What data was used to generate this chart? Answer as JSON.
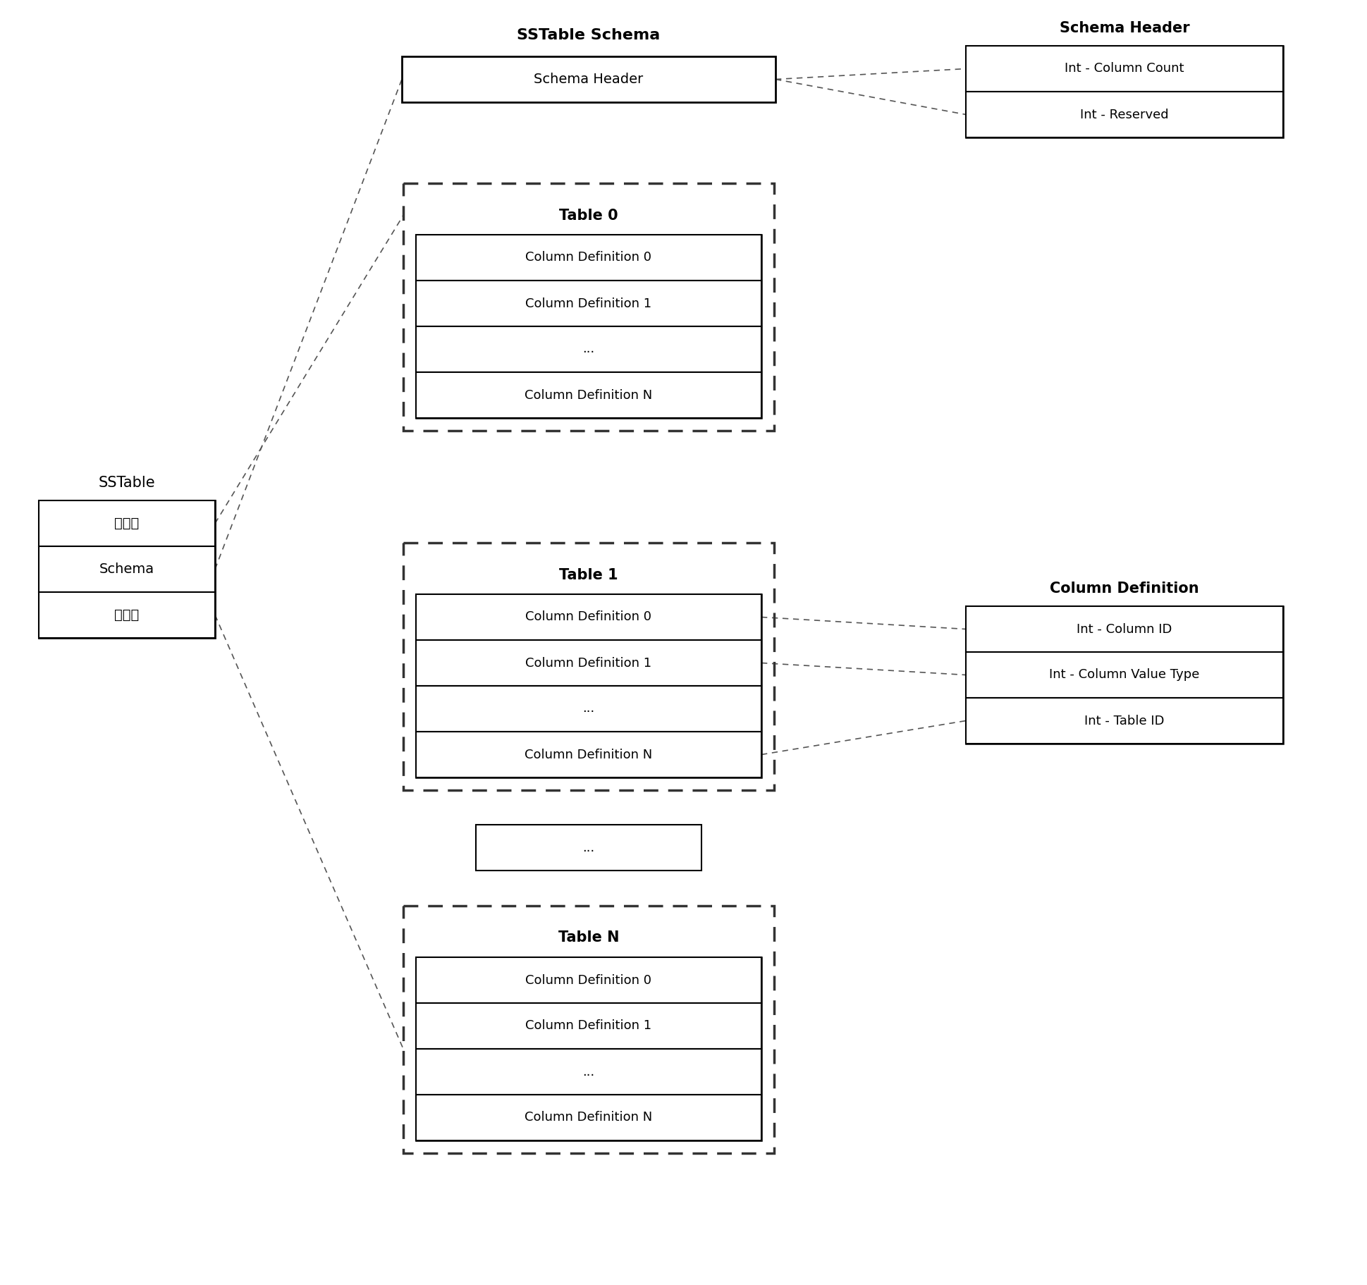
{
  "bg_color": "#ffffff",
  "text_color": "#000000",
  "box_edge_color": "#000000",
  "dashed_box_color": "#444444",
  "sstable_label": "SSTable",
  "sstable_rows": [
    "行数据",
    "Schema",
    "元数据"
  ],
  "schema_label": "SSTable Schema",
  "schema_header_row": "Schema Header",
  "schema_header_box_label": "Schema Header",
  "schema_header_items": [
    "Int - Column Count",
    "Int - Reserved"
  ],
  "col_def_box_label": "Column Definition",
  "col_def_items": [
    "Int - Column ID",
    "Int - Column Value Type",
    "Int - Table ID"
  ],
  "table_rows": [
    "Column Definition 0",
    "Column Definition 1",
    "...",
    "Column Definition N"
  ],
  "table_labels": [
    "Table 0",
    "Table 1",
    "Table N"
  ],
  "dots_label": "...",
  "font_size_label": 15,
  "font_size_row": 13,
  "font_size_title": 16,
  "font_size_bold_title": 17
}
